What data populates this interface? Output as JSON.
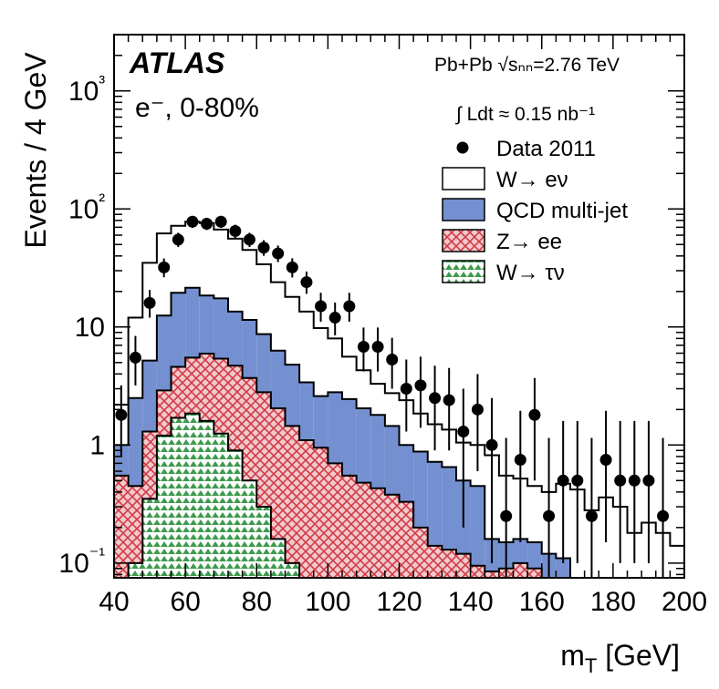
{
  "chart_data": {
    "type": "histogram",
    "title": "",
    "experiment_label": "ATLAS",
    "channel_label": "e⁻, 0-80%",
    "collision_label": "Pb+Pb √sₙₙ=2.76 TeV",
    "luminosity_label": "∫ Ldt ≈ 0.15 nb⁻¹",
    "xlabel": "m_T [GeV]",
    "ylabel": "Events / 4 GeV",
    "xlim": [
      40,
      200
    ],
    "ylim": [
      0.075,
      3000
    ],
    "yscale": "log",
    "bin_width": 4,
    "bin_edges_start": 40,
    "x_tick_labels": [
      "40",
      "60",
      "80",
      "100",
      "120",
      "140",
      "160",
      "180",
      "200"
    ],
    "y_tick_labels": [
      {
        "value": 0.1,
        "label": "10⁻¹"
      },
      {
        "value": 1,
        "label": "1"
      },
      {
        "value": 10,
        "label": "10"
      },
      {
        "value": 100,
        "label": "10²"
      },
      {
        "value": 1000,
        "label": "10³"
      }
    ],
    "legend": [
      {
        "key": "data",
        "label": "Data 2011",
        "style": "marker",
        "color": "#000000"
      },
      {
        "key": "wenu",
        "label": "W→ eν",
        "style": "open",
        "color": "#000000"
      },
      {
        "key": "qcd",
        "label": "QCD multi-jet",
        "style": "solid",
        "color": "#7490d0"
      },
      {
        "key": "zee",
        "label": "Z→ ee",
        "style": "hatch-red",
        "color": "#d03c46"
      },
      {
        "key": "wtaunu",
        "label": "W→ τν",
        "style": "hatch-green",
        "color": "#3d9a4c"
      }
    ],
    "series": [
      {
        "name": "W→ τν",
        "key": "wtaunu",
        "kind": "stack",
        "values": [
          0,
          0.1,
          0.35,
          1.2,
          1.7,
          1.85,
          1.6,
          1.25,
          0.9,
          0.5,
          0.3,
          0.16,
          0.1,
          0.075,
          0,
          0,
          0,
          0,
          0,
          0,
          0,
          0,
          0,
          0,
          0,
          0,
          0,
          0,
          0,
          0,
          0,
          0,
          0,
          0,
          0,
          0,
          0,
          0,
          0,
          0
        ]
      },
      {
        "name": "Z→ ee",
        "key": "zee",
        "kind": "stack",
        "values": [
          0.55,
          0.45,
          1.3,
          2.9,
          4.6,
          5.5,
          5.95,
          5.4,
          4.7,
          3.7,
          2.8,
          2.05,
          1.45,
          1.1,
          0.95,
          0.7,
          0.55,
          0.48,
          0.43,
          0.38,
          0.33,
          0.2,
          0.14,
          0.13,
          0.12,
          0.095,
          0.085,
          0.09,
          0.1,
          0.09,
          0.07,
          0,
          0,
          0,
          0,
          0,
          0,
          0,
          0,
          0
        ]
      },
      {
        "name": "QCD multi-jet",
        "key": "qcd",
        "kind": "stack_total",
        "values": [
          1.0,
          2.5,
          5.2,
          12.5,
          19.5,
          21.5,
          18.5,
          17.5,
          13.5,
          11.5,
          8.7,
          6.3,
          4.8,
          3.4,
          2.6,
          2.8,
          2.45,
          2.05,
          1.8,
          1.45,
          1.0,
          0.88,
          0.72,
          0.65,
          0.5,
          0.45,
          0.16,
          0.15,
          0.16,
          0.15,
          0.12,
          0.11,
          0.075,
          0.075,
          0.07,
          0.07,
          0.07,
          0.07,
          0.07,
          0.07
        ]
      },
      {
        "name": "W→ eν",
        "key": "wenu",
        "kind": "stack_total",
        "values": [
          2.2,
          12.0,
          35.0,
          62.0,
          72.0,
          78.0,
          76.0,
          67.0,
          56.0,
          45.0,
          34.0,
          24.0,
          18.0,
          13.5,
          9.8,
          8.0,
          5.6,
          4.3,
          3.3,
          2.75,
          2.4,
          1.85,
          1.5,
          1.35,
          1.05,
          1.0,
          0.82,
          0.55,
          0.52,
          0.45,
          0.4,
          0.47,
          0.42,
          0.28,
          0.36,
          0.3,
          0.18,
          0.22,
          0.18,
          0.14
        ]
      },
      {
        "name": "Data 2011",
        "key": "data",
        "kind": "points",
        "x": [
          42,
          46,
          50,
          54,
          58,
          62,
          66,
          70,
          74,
          78,
          82,
          86,
          90,
          94,
          98,
          102,
          106,
          110,
          114,
          118,
          122,
          126,
          130,
          134,
          138,
          142,
          146,
          150,
          154,
          158,
          162,
          166,
          170,
          174,
          178,
          182,
          186,
          190,
          194
        ],
        "y": [
          1.8,
          5.5,
          16,
          32,
          55,
          78,
          75,
          78,
          65,
          55,
          47,
          42,
          32,
          24,
          15,
          12,
          15,
          6.8,
          6.8,
          5.3,
          3.0,
          3.2,
          2.5,
          2.4,
          1.3,
          2.0,
          1.0,
          0.25,
          0.75,
          1.8,
          0.25,
          0.5,
          0.5,
          0.25,
          0.75,
          0.5,
          0.5,
          0.5,
          0.25
        ],
        "err_low": [
          1.0,
          2.3,
          4.0,
          5.6,
          7.4,
          8.8,
          8.7,
          8.8,
          8.1,
          7.4,
          6.9,
          6.5,
          5.7,
          4.9,
          3.9,
          3.5,
          3.9,
          2.6,
          2.6,
          2.3,
          1.7,
          1.8,
          1.6,
          1.5,
          1.1,
          1.4,
          0.9,
          0.2,
          0.6,
          1.3,
          0.2,
          0.4,
          0.4,
          0.2,
          0.6,
          0.4,
          0.4,
          0.4,
          0.2
        ],
        "err_high": [
          1.4,
          2.9,
          4.6,
          6.1,
          7.9,
          9.3,
          9.2,
          9.3,
          8.6,
          7.9,
          7.4,
          7.0,
          6.2,
          5.5,
          4.5,
          4.1,
          4.5,
          3.1,
          3.1,
          2.8,
          2.3,
          2.4,
          2.2,
          2.1,
          1.7,
          2.0,
          1.5,
          0.9,
          1.2,
          1.9,
          0.9,
          1.1,
          1.1,
          0.9,
          1.2,
          1.1,
          1.1,
          1.1,
          0.9
        ]
      }
    ]
  }
}
